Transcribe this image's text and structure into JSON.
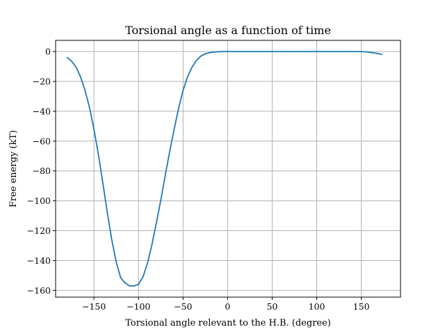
{
  "chart_data": {
    "type": "line",
    "title": "Torsional angle as a function of time",
    "xlabel": "Torsional angle relevant to the H.B. (degree)",
    "ylabel": "Free energy (kT)",
    "xlim": [
      -193,
      194
    ],
    "ylim": [
      -164.5,
      7.5
    ],
    "xticks": [
      -150,
      -100,
      -50,
      0,
      50,
      100,
      150
    ],
    "yticks": [
      0,
      -20,
      -40,
      -60,
      -80,
      -100,
      -120,
      -140,
      -160
    ],
    "xtick_labels": [
      "−150",
      "−100",
      "−50",
      "0",
      "50",
      "100",
      "150"
    ],
    "ytick_labels": [
      "0",
      "−20",
      "−40",
      "−60",
      "−80",
      "−100",
      "−120",
      "−140",
      "−160"
    ],
    "grid": true,
    "color": "#1f77b4",
    "series": [
      {
        "x": [
          -180,
          -175,
          -170,
          -165,
          -160,
          -155,
          -150,
          -145,
          -140,
          -135,
          -130,
          -125,
          -120,
          -115,
          -110,
          -105,
          -100,
          -95,
          -90,
          -85,
          -80,
          -75,
          -70,
          -65,
          -60,
          -55,
          -50,
          -45,
          -40,
          -35,
          -30,
          -25,
          -20,
          -15,
          -10,
          -5,
          0,
          10,
          20,
          40,
          60,
          80,
          100,
          120,
          140,
          150,
          155,
          160,
          165,
          170,
          173
        ],
        "y": [
          -4,
          -6.5,
          -10.5,
          -17,
          -26,
          -37.5,
          -52,
          -69,
          -88,
          -108,
          -126,
          -141,
          -151.5,
          -155,
          -157,
          -157,
          -156,
          -151,
          -142,
          -129.5,
          -115,
          -99.5,
          -83,
          -67,
          -52,
          -38,
          -26,
          -17,
          -10.5,
          -6,
          -3,
          -1.5,
          -0.7,
          -0.3,
          -0.1,
          0,
          0,
          0,
          0,
          0,
          0,
          0,
          0,
          0,
          0,
          0,
          -0.2,
          -0.6,
          -1,
          -1.5,
          -2
        ]
      }
    ]
  }
}
